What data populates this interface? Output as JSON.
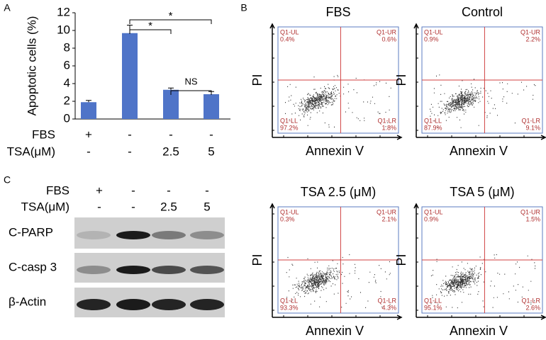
{
  "panel_labels": [
    "A",
    "B",
    "C"
  ],
  "chart_data": {
    "type": "bar",
    "y_label": "Apoptotic cells (%)",
    "condition_rows": [
      {
        "label": "FBS",
        "values": [
          "+",
          "-",
          "-",
          "-"
        ]
      },
      {
        "label": "TSA(μM)",
        "values": [
          "-",
          "-",
          "2.5",
          "5"
        ]
      }
    ],
    "values": [
      1.9,
      9.7,
      3.3,
      2.8
    ],
    "errors": [
      0.2,
      0.9,
      0.2,
      0.3
    ],
    "color": "#4f74c8",
    "ylim": [
      0,
      12
    ],
    "yticks": [
      0,
      2,
      4,
      6,
      8,
      10,
      12
    ],
    "significance": [
      "*",
      "*",
      "NS"
    ]
  },
  "flow_cytometry": {
    "y_label": "PI",
    "x_label": "Annexin V",
    "quadrant_names": [
      "Q1-UL",
      "Q1-UR",
      "Q1-LL",
      "Q1-LR"
    ],
    "plots": [
      {
        "title": "FBS",
        "percentages": [
          "0.4%",
          "0.6%",
          "97.2%",
          "1.8%"
        ]
      },
      {
        "title": "Control",
        "percentages": [
          "0.9%",
          "2.2%",
          "87.9%",
          "9.1%"
        ]
      },
      {
        "title": "TSA 2.5  (μM)",
        "percentages": [
          "0.3%",
          "2.1%",
          "93.3%",
          "4.3%"
        ]
      },
      {
        "title": "TSA 5  (μM)",
        "percentages": [
          "0.9%",
          "1.5%",
          "95.1%",
          "2.6%"
        ]
      }
    ]
  },
  "western_blot": {
    "header_rows": [
      {
        "label": "FBS",
        "values": [
          "+",
          "-",
          "-",
          "-"
        ]
      },
      {
        "label": "TSA(μM)",
        "values": [
          "-",
          "-",
          "2.5",
          "5"
        ]
      }
    ],
    "blots": [
      "C-PARP",
      "C-casp 3",
      "β-Actin"
    ]
  }
}
